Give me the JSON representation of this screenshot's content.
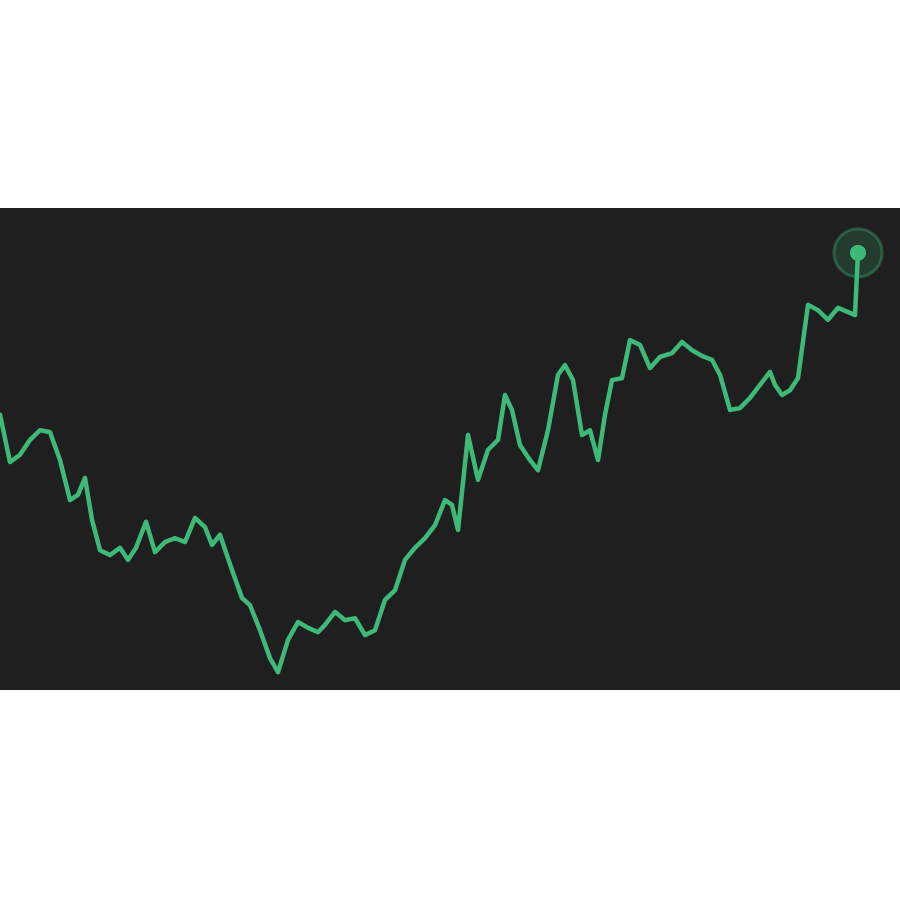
{
  "chart_data": {
    "type": "line",
    "color": "#3dba78",
    "background": "#1f1f1f",
    "xlim": [
      0,
      900
    ],
    "ylim": [
      0,
      100
    ],
    "x": [
      0,
      10,
      20,
      30,
      40,
      50,
      60,
      70,
      78,
      85,
      92,
      100,
      110,
      120,
      128,
      136,
      146,
      155,
      165,
      175,
      185,
      195,
      205,
      212,
      220,
      232,
      242,
      250,
      260,
      270,
      278,
      288,
      298,
      308,
      318,
      325,
      335,
      345,
      355,
      365,
      375,
      385,
      395,
      405,
      415,
      425,
      435,
      445,
      452,
      458,
      468,
      478,
      488,
      498,
      505,
      512,
      520,
      530,
      538,
      548,
      558,
      565,
      573,
      582,
      590,
      598,
      605,
      612,
      622,
      630,
      640,
      650,
      660,
      672,
      682,
      692,
      702,
      712,
      720,
      730,
      740,
      750,
      760,
      770,
      775,
      782,
      790,
      798,
      808,
      818,
      828,
      838,
      848,
      855,
      858
    ],
    "values": [
      57.1,
      47.3,
      48.8,
      51.9,
      53.9,
      53.5,
      47.7,
      39.4,
      40.5,
      44.0,
      35.3,
      29.0,
      28.0,
      29.5,
      27.0,
      29.5,
      34.9,
      28.6,
      30.7,
      31.5,
      30.7,
      35.7,
      33.8,
      30.1,
      32.2,
      24.9,
      19.1,
      17.6,
      12.4,
      6.6,
      3.7,
      10.4,
      14.1,
      12.9,
      12.0,
      13.5,
      16.2,
      14.5,
      14.9,
      11.4,
      12.4,
      18.7,
      20.7,
      27.0,
      29.5,
      31.5,
      34.2,
      39.4,
      38.4,
      33.2,
      52.9,
      43.6,
      49.8,
      51.9,
      61.2,
      58.1,
      50.8,
      47.7,
      45.6,
      53.9,
      65.4,
      67.4,
      64.3,
      52.9,
      53.9,
      47.7,
      57.1,
      64.3,
      64.7,
      72.6,
      71.6,
      66.8,
      69.1,
      69.9,
      72.2,
      70.5,
      69.3,
      68.5,
      65.4,
      58.1,
      58.5,
      60.6,
      63.3,
      66.0,
      63.3,
      61.2,
      62.2,
      64.7,
      79.9,
      78.8,
      76.8,
      79.3,
      78.4,
      77.8,
      90.7
    ]
  }
}
